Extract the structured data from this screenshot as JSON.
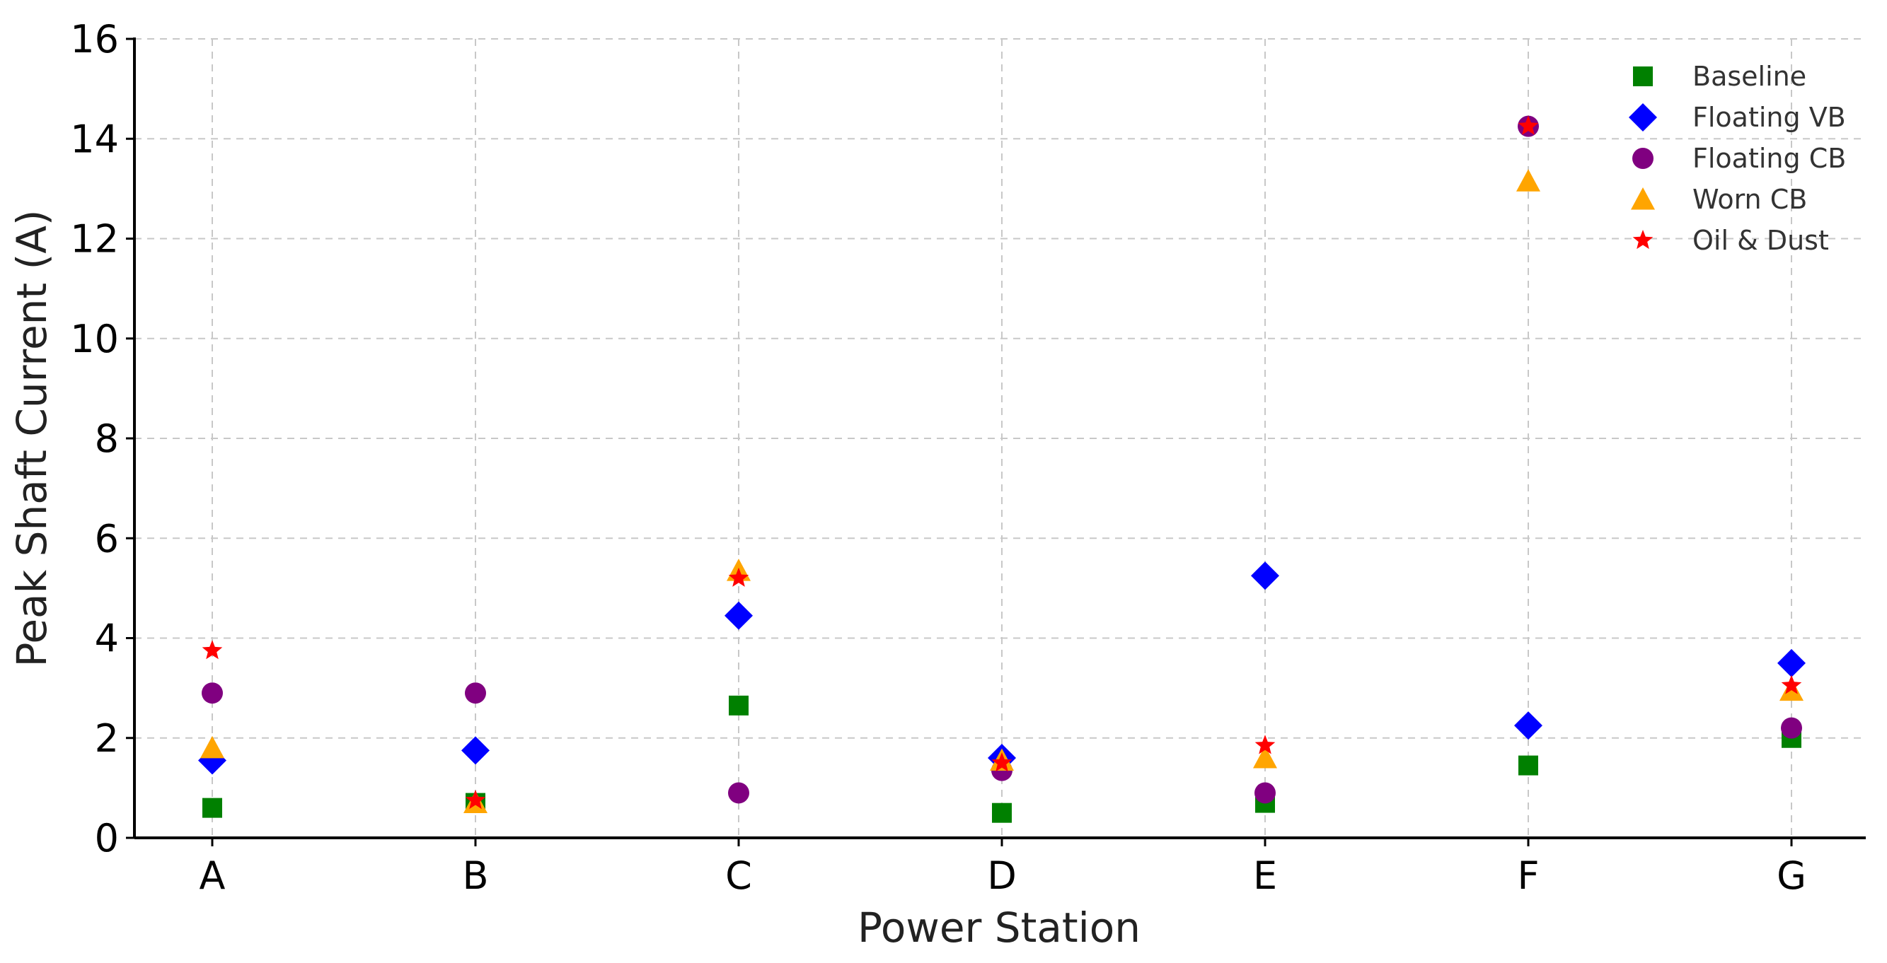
{
  "chart_data": {
    "type": "scatter",
    "title": "",
    "xlabel": "Power Station",
    "ylabel": "Peak Shaft Current (A)",
    "categories": [
      "A",
      "B",
      "C",
      "D",
      "E",
      "F",
      "G"
    ],
    "ylim": [
      0,
      16
    ],
    "yticks": [
      0,
      2,
      4,
      6,
      8,
      10,
      12,
      14,
      16
    ],
    "grid": true,
    "legend_position": "top-right",
    "series": [
      {
        "name": "Baseline",
        "marker": "square",
        "color": "#008000",
        "values": [
          0.6,
          0.7,
          2.65,
          0.5,
          0.7,
          1.45,
          2.0
        ]
      },
      {
        "name": "Floating VB",
        "marker": "diamond",
        "color": "#0000ff",
        "values": [
          1.55,
          1.75,
          4.45,
          1.6,
          5.25,
          2.25,
          3.5
        ]
      },
      {
        "name": "Floating CB",
        "marker": "circle",
        "color": "#800080",
        "values": [
          2.9,
          2.9,
          0.9,
          1.35,
          0.9,
          14.25,
          2.2
        ]
      },
      {
        "name": "Worn CB",
        "marker": "triangle",
        "color": "#ffa500",
        "values": [
          1.8,
          0.7,
          5.35,
          1.55,
          1.6,
          13.15,
          2.95
        ]
      },
      {
        "name": "Oil & Dust",
        "marker": "star",
        "color": "#ff0000",
        "values": [
          3.75,
          0.75,
          5.2,
          1.5,
          1.85,
          14.25,
          3.05
        ]
      }
    ]
  }
}
